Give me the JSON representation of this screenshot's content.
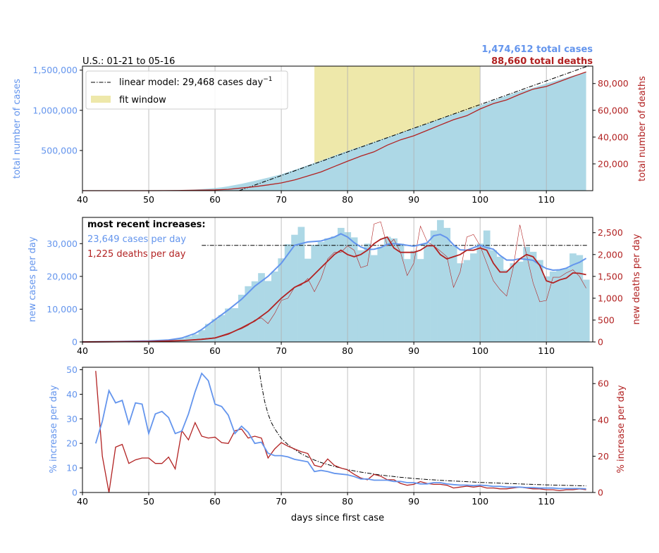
{
  "colors": {
    "cases": "#6495ed",
    "deaths": "#b22222",
    "bars": "#add8e6",
    "fit_window": "#eee8aa",
    "grid": "#b0b0b0",
    "model": "#000000"
  },
  "top": {
    "title_left": "U.S.: 01-21 to 05-16",
    "total_cases": "1,474,612 total cases",
    "total_deaths": "88,660 total deaths",
    "ylabel_left": "total number of cases",
    "ylabel_right": "total number of deaths",
    "legend": {
      "model": "linear model: 29,468 cases day",
      "model_sup": "−1",
      "fit": "fit window"
    }
  },
  "middle": {
    "title": "most recent increases:",
    "cases_note": "23,649 cases per day",
    "deaths_note": "1,225 deaths per day",
    "ylabel_left": "new cases per day",
    "ylabel_right": "new deaths per day"
  },
  "bottom": {
    "xlabel": "days since first case",
    "ylabel_left": "% increase per day",
    "ylabel_right": "% increase per day"
  },
  "chart_data": [
    {
      "type": "area",
      "xlim": [
        40,
        117
      ],
      "ylim_left": [
        0,
        1550000
      ],
      "ylim_right": [
        0,
        93000
      ],
      "xticks": [
        40,
        50,
        60,
        70,
        80,
        90,
        100,
        110
      ],
      "yticks_left": [
        500000,
        1000000,
        1500000
      ],
      "ytick_labels_left": [
        "500,000",
        "1,000,000",
        "1,500,000"
      ],
      "yticks_right": [
        20000,
        40000,
        60000,
        80000
      ],
      "ytick_labels_right": [
        "20,000",
        "40,000",
        "60,000",
        "80,000"
      ],
      "fit_window": [
        75,
        100
      ],
      "linear_model": {
        "slope": 29468,
        "x0": 75,
        "y0": 335000
      },
      "cases_total": {
        "x": [
          40,
          45,
          50,
          52,
          54,
          56,
          57,
          58,
          59,
          60,
          61,
          62,
          63,
          64,
          65,
          66,
          67,
          68,
          69,
          70,
          72,
          74,
          76,
          78,
          80,
          82,
          84,
          86,
          88,
          90,
          92,
          94,
          96,
          98,
          100,
          102,
          104,
          106,
          108,
          110,
          112,
          114,
          116
        ],
        "y": [
          0,
          1000,
          2000,
          3500,
          6000,
          10000,
          14000,
          19000,
          25000,
          32000,
          42000,
          55000,
          70000,
          86000,
          104000,
          123000,
          142000,
          162000,
          183000,
          204000,
          258000,
          316000,
          373000,
          436000,
          495000,
          550000,
          606000,
          664000,
          720000,
          780000,
          832000,
          895000,
          950000,
          998000,
          1060000,
          1122000,
          1181000,
          1237000,
          1280000,
          1335000,
          1384000,
          1432000,
          1474612
        ]
      },
      "deaths_total": {
        "x": [
          40,
          50,
          55,
          60,
          62,
          64,
          66,
          68,
          70,
          72,
          74,
          76,
          78,
          80,
          82,
          84,
          86,
          88,
          90,
          92,
          94,
          96,
          98,
          100,
          102,
          104,
          106,
          108,
          110,
          112,
          114,
          116
        ],
        "y": [
          0,
          0,
          150,
          600,
          1000,
          2000,
          3000,
          4300,
          5800,
          8000,
          11000,
          14000,
          18000,
          22000,
          25800,
          29000,
          34000,
          38000,
          41000,
          45000,
          49000,
          53000,
          56000,
          61000,
          65000,
          67800,
          72000,
          75800,
          77800,
          81500,
          85200,
          88660
        ]
      }
    },
    {
      "type": "bar",
      "xlim": [
        40,
        117
      ],
      "ylim_left": [
        0,
        38000
      ],
      "ylim_right": [
        0,
        2850
      ],
      "yticks_left": [
        0,
        10000,
        20000,
        30000
      ],
      "ytick_labels_left": [
        "0",
        "10,000",
        "20,000",
        "30,000"
      ],
      "yticks_right": [
        0,
        500,
        1000,
        1500,
        2000,
        2500
      ],
      "ytick_labels_right": [
        "0",
        "500",
        "1,000",
        "1,500",
        "2,000",
        "2,500"
      ],
      "model_level": 29468,
      "model_start": 58,
      "new_cases": {
        "x": [
          40,
          41,
          42,
          43,
          44,
          45,
          46,
          47,
          48,
          49,
          50,
          51,
          52,
          53,
          54,
          55,
          56,
          57,
          58,
          59,
          60,
          61,
          62,
          63,
          64,
          65,
          66,
          67,
          68,
          69,
          70,
          71,
          72,
          73,
          74,
          75,
          76,
          77,
          78,
          79,
          80,
          81,
          82,
          83,
          84,
          85,
          86,
          87,
          88,
          89,
          90,
          91,
          92,
          93,
          94,
          95,
          96,
          97,
          98,
          99,
          100,
          101,
          102,
          103,
          104,
          105,
          106,
          107,
          108,
          109,
          110,
          111,
          112,
          113,
          114,
          115,
          116
        ],
        "y": [
          50,
          60,
          80,
          100,
          120,
          150,
          180,
          220,
          280,
          350,
          400,
          500,
          550,
          700,
          800,
          1100,
          1700,
          2300,
          3600,
          5500,
          7000,
          8200,
          10200,
          10300,
          14400,
          17000,
          18500,
          21000,
          18600,
          21500,
          25500,
          29800,
          32700,
          35100,
          25400,
          29600,
          30500,
          31600,
          32200,
          34800,
          33500,
          31900,
          28000,
          30000,
          26500,
          29000,
          32100,
          31600,
          30000,
          25300,
          27800,
          25300,
          30000,
          34000,
          37200,
          34800,
          29500,
          24000,
          25000,
          27000,
          30000,
          34000,
          28000,
          26000,
          22000,
          24000,
          24500,
          29000,
          27500,
          25000,
          20000,
          21500,
          22000,
          22500,
          27000,
          26500,
          19000
        ]
      },
      "cases_smooth": {
        "x": [
          40,
          45,
          50,
          53,
          55,
          57,
          58,
          60,
          62,
          64,
          66,
          68,
          70,
          72,
          74,
          76,
          78,
          79,
          80,
          81,
          82,
          83,
          84,
          85,
          86,
          87,
          88,
          90,
          92,
          93,
          94,
          95,
          96,
          97,
          98,
          100,
          101,
          102,
          103,
          104,
          105,
          106,
          107,
          108,
          109,
          110,
          111,
          112,
          113,
          114,
          115,
          116
        ],
        "y": [
          0,
          100,
          300,
          600,
          1200,
          2600,
          3800,
          6800,
          9800,
          13000,
          17000,
          20000,
          24000,
          29500,
          30500,
          30800,
          32000,
          33000,
          32000,
          30300,
          29000,
          28200,
          28300,
          28800,
          29800,
          30000,
          29800,
          29200,
          30200,
          32400,
          32800,
          31800,
          29600,
          28100,
          28000,
          29500,
          28800,
          28300,
          26400,
          25000,
          25000,
          25400,
          25200,
          24900,
          23500,
          22400,
          21900,
          22000,
          22500,
          23500,
          24300,
          25500
        ]
      },
      "new_deaths": {
        "x": [
          40,
          50,
          55,
          58,
          60,
          62,
          64,
          65,
          66,
          67,
          68,
          69,
          70,
          71,
          72,
          73,
          74,
          75,
          76,
          77,
          78,
          79,
          80,
          81,
          82,
          83,
          84,
          85,
          86,
          87,
          88,
          89,
          90,
          91,
          92,
          93,
          94,
          95,
          96,
          97,
          98,
          99,
          100,
          101,
          102,
          103,
          104,
          105,
          106,
          107,
          108,
          109,
          110,
          111,
          112,
          113,
          114,
          115,
          116
        ],
        "y": [
          0,
          5,
          30,
          70,
          100,
          200,
          300,
          380,
          500,
          550,
          420,
          650,
          950,
          1000,
          1250,
          1300,
          1450,
          1150,
          1450,
          1900,
          2050,
          2050,
          2200,
          2100,
          1700,
          1750,
          2700,
          2750,
          2200,
          2350,
          2050,
          1520,
          1800,
          2650,
          2300,
          2200,
          2080,
          1950,
          1250,
          1600,
          2400,
          2460,
          2200,
          1800,
          1400,
          1200,
          1050,
          1700,
          2680,
          2000,
          1350,
          920,
          950,
          1480,
          1480,
          1580,
          1650,
          1500,
          1230
        ]
      },
      "deaths_smooth": {
        "x": [
          40,
          50,
          55,
          58,
          60,
          62,
          64,
          66,
          68,
          70,
          72,
          74,
          76,
          78,
          79,
          80,
          81,
          82,
          83,
          84,
          85,
          86,
          87,
          88,
          89,
          90,
          91,
          92,
          93,
          94,
          95,
          96,
          97,
          98,
          99,
          100,
          101,
          102,
          103,
          104,
          105,
          106,
          107,
          108,
          109,
          110,
          111,
          112,
          113,
          114,
          115,
          116
        ],
        "y": [
          0,
          10,
          30,
          60,
          90,
          180,
          320,
          480,
          700,
          1000,
          1250,
          1400,
          1700,
          2000,
          2100,
          2000,
          1950,
          2000,
          2100,
          2250,
          2350,
          2400,
          2150,
          2050,
          2050,
          2050,
          2100,
          2200,
          2200,
          2000,
          1900,
          1950,
          2000,
          2100,
          2100,
          2150,
          2100,
          1800,
          1600,
          1600,
          1750,
          1900,
          2000,
          1950,
          1750,
          1400,
          1350,
          1420,
          1460,
          1580,
          1570,
          1540
        ]
      }
    },
    {
      "type": "line",
      "xlim": [
        40,
        117
      ],
      "ylim_left": [
        0,
        51
      ],
      "ylim_right": [
        0,
        69
      ],
      "yticks_left": [
        0,
        10,
        20,
        30,
        40,
        50
      ],
      "yticks_right": [
        0,
        20,
        40,
        60
      ],
      "cases_pct": {
        "x": [
          42,
          43,
          44,
          45,
          46,
          47,
          48,
          49,
          50,
          51,
          52,
          53,
          54,
          55,
          56,
          57,
          58,
          59,
          60,
          61,
          62,
          63,
          64,
          65,
          66,
          67,
          68,
          69,
          70,
          71,
          72,
          73,
          74,
          75,
          76,
          77,
          78,
          79,
          80,
          81,
          82,
          83,
          84,
          85,
          86,
          87,
          88,
          89,
          90,
          91,
          92,
          93,
          94,
          95,
          96,
          97,
          98,
          99,
          100,
          101,
          102,
          103,
          104,
          105,
          106,
          107,
          108,
          109,
          110,
          111,
          112,
          113,
          114,
          115,
          116
        ],
        "y": [
          20,
          29,
          41.5,
          36.5,
          37.5,
          28,
          36.5,
          36,
          24,
          32,
          33,
          30.5,
          24,
          25,
          32,
          41,
          48.5,
          45.5,
          36,
          35,
          31.5,
          24,
          27,
          24.5,
          20,
          20.5,
          16,
          15,
          15,
          14.5,
          13.5,
          13,
          12.5,
          8.5,
          9,
          8.5,
          7.8,
          7.5,
          7.2,
          6.5,
          5.5,
          5.5,
          5,
          5,
          5,
          4.5,
          4.5,
          4,
          4,
          3.5,
          3.5,
          4,
          4,
          3.5,
          3.2,
          3,
          3,
          2.8,
          3,
          2.8,
          2.5,
          2.5,
          2.2,
          2.2,
          2.2,
          2,
          2,
          1.8,
          1.8,
          1.8,
          1.6,
          1.6,
          1.6,
          1.6,
          1.5
        ]
      },
      "deaths_pct": {
        "x": [
          42,
          43,
          44,
          45,
          46,
          47,
          48,
          49,
          50,
          51,
          52,
          53,
          54,
          55,
          56,
          57,
          58,
          59,
          60,
          61,
          62,
          63,
          64,
          65,
          66,
          67,
          68,
          69,
          70,
          71,
          72,
          73,
          74,
          75,
          76,
          77,
          78,
          79,
          80,
          81,
          82,
          83,
          84,
          85,
          86,
          87,
          88,
          89,
          90,
          91,
          92,
          93,
          94,
          95,
          96,
          97,
          98,
          99,
          100,
          101,
          102,
          103,
          104,
          105,
          106,
          107,
          108,
          109,
          110,
          111,
          112,
          113,
          114,
          115,
          116
        ],
        "y": [
          67,
          20,
          0,
          25,
          26.5,
          16,
          18,
          19,
          19,
          16,
          16,
          19.5,
          13,
          34,
          29,
          38.5,
          31,
          30,
          30.5,
          27.5,
          27,
          34,
          35,
          30,
          31,
          30,
          19,
          24,
          27.5,
          25.5,
          24,
          22.5,
          21.5,
          15,
          14,
          18.5,
          15,
          13.5,
          12.5,
          10,
          8,
          7,
          10,
          9,
          7,
          7,
          5,
          4,
          4.5,
          6,
          5,
          4.5,
          4.5,
          4,
          2.5,
          3,
          3.5,
          3,
          3.5,
          2.5,
          2.5,
          2,
          2,
          2.5,
          3,
          2.5,
          2,
          2,
          1.5,
          1.5,
          1,
          1.5,
          1.5,
          2,
          1.5
        ]
      },
      "model_pct": {
        "x": [
          66.6,
          67,
          67.5,
          68,
          68.5,
          69,
          70,
          71,
          72,
          73,
          74,
          75,
          76,
          78,
          80,
          82,
          85,
          88,
          90,
          92,
          95,
          98,
          100,
          103,
          106,
          110,
          113,
          116
        ],
        "y": [
          51,
          44,
          37,
          32,
          28.5,
          26,
          22,
          19.5,
          17.5,
          15.8,
          14.4,
          13.2,
          12.2,
          10.6,
          9.3,
          8.3,
          7.1,
          6.2,
          5.7,
          5.3,
          4.8,
          4.4,
          4.1,
          3.8,
          3.5,
          3.1,
          2.9,
          2.7
        ]
      }
    }
  ]
}
